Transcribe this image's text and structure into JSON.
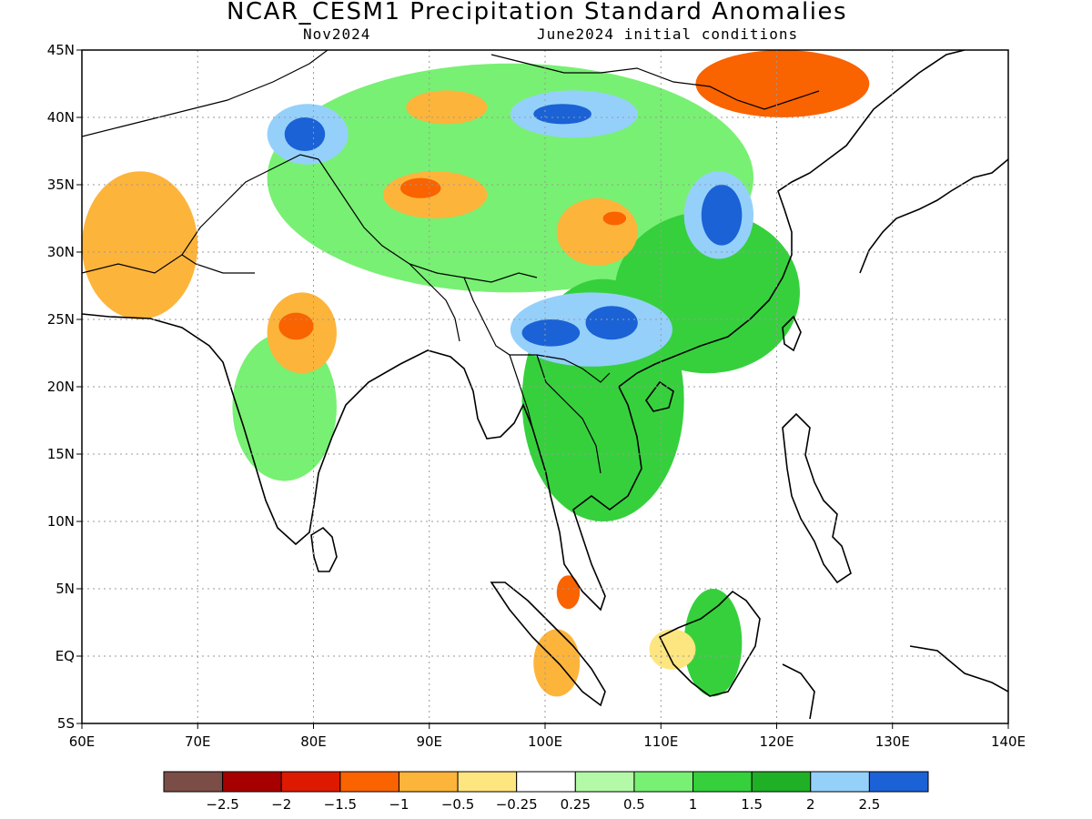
{
  "title": "NCAR_CESM1 Precipitation Standard Anomalies",
  "subtitle_left": "Nov2024",
  "subtitle_right": "June2024 initial conditions",
  "map": {
    "lon_range": [
      60,
      140
    ],
    "lat_range": [
      -5,
      45
    ],
    "lat_ticks": [
      "45N",
      "40N",
      "35N",
      "30N",
      "25N",
      "20N",
      "15N",
      "10N",
      "5N",
      "EQ",
      "5S"
    ],
    "lon_ticks": [
      "60E",
      "70E",
      "80E",
      "90E",
      "100E",
      "110E",
      "120E",
      "130E",
      "140E"
    ],
    "grid": true
  },
  "legend": {
    "colors": [
      "#7a4e46",
      "#a60000",
      "#dd1a00",
      "#f96300",
      "#fdb43b",
      "#fde580",
      "#ffffff",
      "#b4f9a8",
      "#78f073",
      "#36d03d",
      "#1fb026",
      "#95d0fb",
      "#1a62d5"
    ],
    "labels": [
      "−2.5",
      "−2",
      "−1.5",
      "−1",
      "−0.5",
      "−0.25",
      "0.25",
      "0.5",
      "1",
      "1.5",
      "2",
      "2.5"
    ]
  },
  "anomaly_regions": [
    {
      "name": "tibet-green-band",
      "lon": [
        76,
        118
      ],
      "lat": [
        27,
        44
      ],
      "color": "#78f073"
    },
    {
      "name": "indochina-green",
      "lon": [
        98,
        112
      ],
      "lat": [
        10,
        28
      ],
      "color": "#36d03d"
    },
    {
      "name": "india-west-green",
      "lon": [
        73,
        82
      ],
      "lat": [
        13,
        24
      ],
      "color": "#78f073"
    },
    {
      "name": "south-china-green",
      "lon": [
        106,
        122
      ],
      "lat": [
        21,
        33
      ],
      "color": "#36d03d"
    },
    {
      "name": "afghanistan-dry",
      "lon": [
        60,
        70
      ],
      "lat": [
        25,
        36
      ],
      "color": "#fdb43b"
    },
    {
      "name": "central-india-dry",
      "lon": [
        76,
        82
      ],
      "lat": [
        21,
        27
      ],
      "color": "#fdb43b"
    },
    {
      "name": "central-india-core",
      "lon": [
        77,
        80
      ],
      "lat": [
        23.5,
        25.5
      ],
      "color": "#f96300"
    },
    {
      "name": "tibet-dry",
      "lon": [
        86,
        95
      ],
      "lat": [
        32.5,
        36
      ],
      "color": "#fdb43b"
    },
    {
      "name": "tibet-dry-core",
      "lon": [
        87.5,
        91
      ],
      "lat": [
        34,
        35.5
      ],
      "color": "#f96300"
    },
    {
      "name": "sichuan-dry",
      "lon": [
        101,
        108
      ],
      "lat": [
        29,
        34
      ],
      "color": "#fdb43b"
    },
    {
      "name": "sichuan-dry-core",
      "lon": [
        105,
        107
      ],
      "lat": [
        32,
        33
      ],
      "color": "#f96300"
    },
    {
      "name": "mongolia-dry",
      "lon": [
        113,
        128
      ],
      "lat": [
        40,
        45
      ],
      "color": "#f96300"
    },
    {
      "name": "tarim-dry",
      "lon": [
        88,
        95
      ],
      "lat": [
        39.5,
        42
      ],
      "color": "#fdb43b"
    },
    {
      "name": "tarim-wet",
      "lon": [
        76,
        83
      ],
      "lat": [
        36.5,
        41
      ],
      "color": "#95d0fb"
    },
    {
      "name": "tarim-wet-core",
      "lon": [
        77.5,
        81
      ],
      "lat": [
        37.5,
        40
      ],
      "color": "#1a62d5"
    },
    {
      "name": "gobi-wet",
      "lon": [
        97,
        108
      ],
      "lat": [
        38.5,
        42
      ],
      "color": "#95d0fb"
    },
    {
      "name": "gobi-wet-core",
      "lon": [
        99,
        104
      ],
      "lat": [
        39.5,
        41
      ],
      "color": "#1a62d5"
    },
    {
      "name": "east-china-wet",
      "lon": [
        112,
        118
      ],
      "lat": [
        29.5,
        36
      ],
      "color": "#95d0fb"
    },
    {
      "name": "east-china-wet-core",
      "lon": [
        113.5,
        117
      ],
      "lat": [
        30.5,
        35
      ],
      "color": "#1a62d5"
    },
    {
      "name": "yunnan-wet",
      "lon": [
        97,
        111
      ],
      "lat": [
        21.5,
        27
      ],
      "color": "#95d0fb"
    },
    {
      "name": "yunnan-wet-core-a",
      "lon": [
        98,
        103
      ],
      "lat": [
        23,
        25
      ],
      "color": "#1a62d5"
    },
    {
      "name": "yunnan-wet-core-b",
      "lon": [
        103.5,
        108
      ],
      "lat": [
        23.5,
        26
      ],
      "color": "#1a62d5"
    },
    {
      "name": "sumatra-dry",
      "lon": [
        99,
        103
      ],
      "lat": [
        -3,
        2
      ],
      "color": "#fdb43b"
    },
    {
      "name": "malaya-dry",
      "lon": [
        101,
        103
      ],
      "lat": [
        3.5,
        6
      ],
      "color": "#f96300"
    },
    {
      "name": "borneo-green",
      "lon": [
        112,
        117
      ],
      "lat": [
        -3,
        5
      ],
      "color": "#36d03d"
    },
    {
      "name": "borneo-dry",
      "lon": [
        109,
        113
      ],
      "lat": [
        -1,
        2
      ],
      "color": "#fde580"
    }
  ]
}
